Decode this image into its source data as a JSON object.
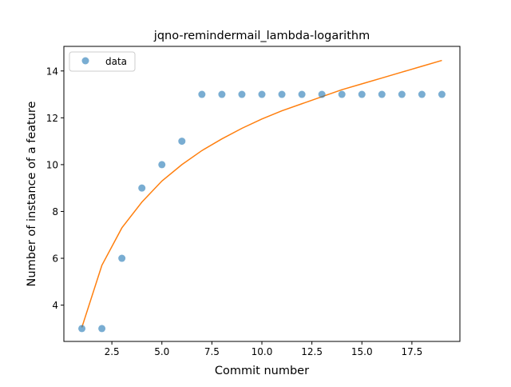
{
  "chart_data": {
    "type": "scatter",
    "title": "jqno-remindermail_lambda-logarithm",
    "xlabel": "Commit number",
    "ylabel": "Number of instance of a feature",
    "xlim": [
      0.1,
      19.9
    ],
    "ylim": [
      2.45,
      15.05
    ],
    "xticks": [
      2.5,
      5.0,
      7.5,
      10.0,
      12.5,
      15.0,
      17.5
    ],
    "xtick_labels": [
      "2.5",
      "5.0",
      "7.5",
      "10.0",
      "12.5",
      "15.0",
      "17.5"
    ],
    "yticks": [
      4,
      6,
      8,
      10,
      12,
      14
    ],
    "ytick_labels": [
      "4",
      "6",
      "8",
      "10",
      "12",
      "14"
    ],
    "grid": false,
    "legend": {
      "placement": "top-left",
      "entries": [
        {
          "label": "data"
        }
      ]
    },
    "series": [
      {
        "name": "data",
        "kind": "scatter",
        "color": "#1f77b4",
        "x": [
          1,
          2,
          3,
          4,
          5,
          6,
          7,
          8,
          9,
          10,
          11,
          12,
          13,
          14,
          15,
          16,
          17,
          18,
          19
        ],
        "y": [
          3,
          3,
          6,
          9,
          10,
          11,
          13,
          13,
          13,
          13,
          13,
          13,
          13,
          13,
          13,
          13,
          13,
          13,
          13
        ]
      },
      {
        "kind": "line",
        "color": "#ff7f0e",
        "x": [
          1,
          2,
          3,
          4,
          5,
          6,
          7,
          8,
          9,
          10,
          11,
          12,
          13,
          14,
          15,
          16,
          17,
          18,
          19
        ],
        "y": [
          3.05,
          5.7,
          7.3,
          8.4,
          9.3,
          10.0,
          10.6,
          11.1,
          11.55,
          11.95,
          12.3,
          12.6,
          12.9,
          13.2,
          13.45,
          13.7,
          13.95,
          14.2,
          14.45
        ]
      }
    ]
  }
}
